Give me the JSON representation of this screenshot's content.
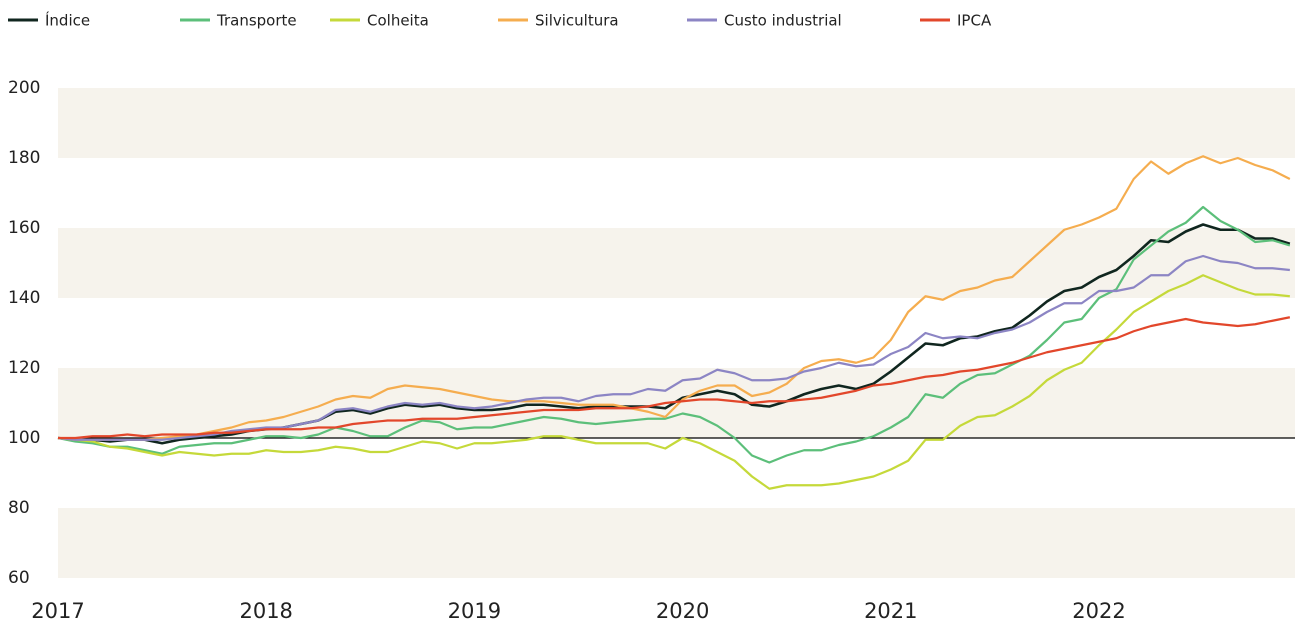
{
  "chart_data": {
    "type": "line",
    "categories": [
      "2017",
      null,
      null,
      null,
      null,
      null,
      null,
      null,
      null,
      null,
      null,
      null,
      "2018",
      null,
      null,
      null,
      null,
      null,
      null,
      null,
      null,
      null,
      null,
      null,
      "2019",
      null,
      null,
      null,
      null,
      null,
      null,
      null,
      null,
      null,
      null,
      null,
      "2020",
      null,
      null,
      null,
      null,
      null,
      null,
      null,
      null,
      null,
      null,
      null,
      "2021",
      null,
      null,
      null,
      null,
      null,
      null,
      null,
      null,
      null,
      null,
      null,
      "2022",
      null,
      null,
      null,
      null,
      null,
      null,
      null,
      null,
      null,
      null,
      null
    ],
    "series": [
      {
        "name": "Índice",
        "color": "#10261f",
        "values": [
          100,
          99.5,
          99.5,
          99,
          99.5,
          99.5,
          98.5,
          99.5,
          100,
          100.5,
          101,
          102,
          102.5,
          103,
          104,
          105,
          107.5,
          108,
          107,
          108.5,
          109.5,
          109,
          109.5,
          108.5,
          108,
          108,
          108.5,
          109.5,
          109.5,
          109,
          108.5,
          109,
          109,
          109,
          109,
          108.5,
          111.5,
          112.5,
          113.5,
          112.5,
          109.5,
          109,
          110.5,
          112.5,
          114,
          115,
          114,
          115.5,
          119,
          123,
          127,
          126.5,
          128.5,
          129,
          130.5,
          131.5,
          135,
          139,
          142,
          143,
          146,
          148,
          152,
          156.5,
          156,
          159,
          161,
          159.5,
          159.5,
          157,
          157,
          155.5
        ]
      },
      {
        "name": "Transporte",
        "color": "#5cbf7a",
        "values": [
          100,
          99,
          98.5,
          97.5,
          97.5,
          96.5,
          95.5,
          97.5,
          98,
          98.5,
          98.5,
          99.5,
          100.5,
          100.5,
          100,
          101,
          103,
          102,
          100.5,
          100.5,
          103,
          105,
          104.5,
          102.5,
          103,
          103,
          104,
          105,
          106,
          105.5,
          104.5,
          104,
          104.5,
          105,
          105.5,
          105.5,
          107,
          106,
          103.5,
          100,
          95,
          93,
          95,
          96.5,
          96.5,
          98,
          99,
          100.5,
          103,
          106,
          112.5,
          111.5,
          115.5,
          118,
          118.5,
          121,
          123.5,
          128,
          133,
          134,
          140,
          142.5,
          151,
          155,
          159,
          161.5,
          166,
          162,
          159.5,
          156,
          156.5,
          155
        ]
      },
      {
        "name": "Colheita",
        "color": "#c5d93a",
        "values": [
          100,
          99.5,
          99,
          97.5,
          97,
          96,
          95,
          96,
          95.5,
          95,
          95.5,
          95.5,
          96.5,
          96,
          96,
          96.5,
          97.5,
          97,
          96,
          96,
          97.5,
          99,
          98.5,
          97,
          98.5,
          98.5,
          99,
          99.5,
          100.5,
          100.5,
          99.5,
          98.5,
          98.5,
          98.5,
          98.5,
          97,
          100,
          98.5,
          96,
          93.5,
          89,
          85.5,
          86.5,
          86.5,
          86.5,
          87,
          88,
          89,
          91,
          93.5,
          99.5,
          99.5,
          103.5,
          106,
          106.5,
          109,
          112,
          116.5,
          119.5,
          121.5,
          126.5,
          131,
          136,
          139,
          142,
          144,
          146.5,
          144.5,
          142.5,
          141,
          141,
          140.5
        ]
      },
      {
        "name": "Silvicultura",
        "color": "#f5ad4f",
        "values": [
          100,
          99.5,
          99.5,
          99.5,
          99.5,
          99.5,
          100,
          100.5,
          101,
          102,
          103,
          104.5,
          105,
          106,
          107.5,
          109,
          111,
          112,
          111.5,
          114,
          115,
          114.5,
          114,
          113,
          112,
          111,
          110.5,
          110.5,
          110.5,
          110,
          109.5,
          109.5,
          109.5,
          108.5,
          107.5,
          106,
          111,
          113.5,
          115,
          115,
          112,
          113,
          115.5,
          120,
          122,
          122.5,
          121.5,
          123,
          128,
          136,
          140.5,
          139.5,
          142,
          143,
          145,
          146,
          150.5,
          155,
          159.5,
          161,
          163,
          165.5,
          174,
          179,
          175.5,
          178.5,
          180.5,
          178.5,
          180,
          178,
          176.5,
          174
        ]
      },
      {
        "name": "Custo industrial",
        "color": "#8c85c4",
        "values": [
          100,
          99.5,
          99.5,
          99.5,
          99.5,
          99.5,
          99.5,
          100,
          100.5,
          101,
          102,
          102.5,
          103,
          103,
          104,
          105,
          108,
          108.5,
          107.5,
          109,
          110,
          109.5,
          110,
          109,
          108.5,
          109,
          110,
          111,
          111.5,
          111.5,
          110.5,
          112,
          112.5,
          112.5,
          114,
          113.5,
          116.5,
          117,
          119.5,
          118.5,
          116.5,
          116.5,
          117,
          119,
          120,
          121.5,
          120.5,
          121,
          124,
          126,
          130,
          128.5,
          129,
          128.5,
          130,
          131,
          133,
          136,
          138.5,
          138.5,
          142,
          142,
          143,
          146.5,
          146.5,
          150.5,
          152,
          150.5,
          150,
          148.5,
          148.5,
          148
        ]
      },
      {
        "name": "IPCA",
        "color": "#e2472b",
        "values": [
          100,
          100,
          100.5,
          100.5,
          101,
          100.5,
          101,
          101,
          101,
          101.5,
          101.5,
          102,
          102.5,
          102.5,
          102.5,
          103,
          103,
          104,
          104.5,
          105,
          105,
          105.5,
          105.5,
          105.5,
          106,
          106.5,
          107,
          107.5,
          108,
          108,
          108,
          108.5,
          108.5,
          108.5,
          109,
          110,
          110.5,
          111,
          111,
          110.5,
          110,
          110.5,
          110.5,
          111,
          111.5,
          112.5,
          113.5,
          115,
          115.5,
          116.5,
          117.5,
          118,
          119,
          119.5,
          120.5,
          121.5,
          123,
          124.5,
          125.5,
          126.5,
          127.5,
          128.5,
          130.5,
          132,
          133,
          134,
          133,
          132.5,
          132,
          132.5,
          133.5,
          134.5
        ]
      }
    ],
    "ylim": [
      60,
      200
    ],
    "yticks": [
      60,
      80,
      100,
      120,
      140,
      160,
      180,
      200
    ],
    "bands": true,
    "hline": 100,
    "legend": "top"
  }
}
